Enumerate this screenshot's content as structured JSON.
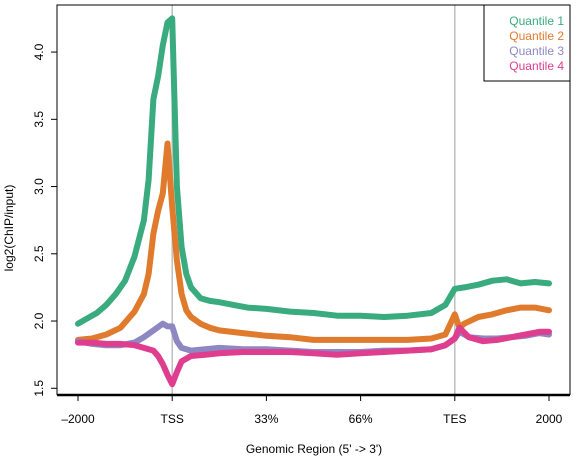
{
  "chart_data": {
    "type": "line",
    "title": "",
    "xlabel": "Genomic Region (5' -> 3')",
    "ylabel": "log2(ChIP/input)",
    "xlim": [
      0,
      100
    ],
    "ylim": [
      1.45,
      4.35
    ],
    "x_ticks": [
      {
        "x": 0,
        "label": "–2000"
      },
      {
        "x": 20,
        "label": "TSS"
      },
      {
        "x": 40,
        "label": "33%"
      },
      {
        "x": 60,
        "label": "66%"
      },
      {
        "x": 80,
        "label": "TES"
      },
      {
        "x": 100,
        "label": "2000"
      }
    ],
    "y_ticks": [
      1.5,
      2.0,
      2.5,
      3.0,
      3.5,
      4.0
    ],
    "vlines": [
      20,
      80
    ],
    "grid": false,
    "legend": {
      "position": "top-right"
    },
    "series": [
      {
        "name": "Quantile 1",
        "color": "#3aaa7f",
        "x": [
          0,
          2,
          4,
          6,
          8,
          10,
          12,
          14,
          15,
          16,
          17,
          18,
          19,
          20,
          21,
          22,
          23,
          24,
          26,
          28,
          30,
          33,
          36,
          40,
          45,
          50,
          55,
          60,
          65,
          70,
          75,
          78,
          80,
          82,
          85,
          88,
          91,
          94,
          97,
          100
        ],
        "y": [
          1.98,
          2.02,
          2.06,
          2.12,
          2.2,
          2.3,
          2.48,
          2.75,
          3.05,
          3.65,
          3.82,
          4.05,
          4.22,
          4.25,
          3.0,
          2.55,
          2.35,
          2.25,
          2.17,
          2.15,
          2.14,
          2.12,
          2.1,
          2.09,
          2.07,
          2.06,
          2.04,
          2.04,
          2.03,
          2.04,
          2.06,
          2.12,
          2.24,
          2.25,
          2.27,
          2.3,
          2.31,
          2.28,
          2.29,
          2.28
        ]
      },
      {
        "name": "Quantile 2",
        "color": "#e07a2c",
        "x": [
          0,
          3,
          6,
          9,
          12,
          14,
          15,
          16,
          17,
          18,
          19,
          20,
          21,
          22,
          23,
          24,
          26,
          28,
          30,
          35,
          40,
          45,
          50,
          55,
          60,
          65,
          70,
          75,
          78,
          80,
          81,
          82,
          85,
          88,
          91,
          94,
          97,
          100
        ],
        "y": [
          1.86,
          1.87,
          1.9,
          1.95,
          2.07,
          2.2,
          2.35,
          2.65,
          2.82,
          2.95,
          3.32,
          2.85,
          2.45,
          2.2,
          2.08,
          2.03,
          1.98,
          1.95,
          1.93,
          1.91,
          1.89,
          1.88,
          1.86,
          1.86,
          1.86,
          1.86,
          1.86,
          1.87,
          1.9,
          2.05,
          1.95,
          1.98,
          2.03,
          2.05,
          2.08,
          2.1,
          2.1,
          2.08
        ]
      },
      {
        "name": "Quantile 3",
        "color": "#8d87c2",
        "x": [
          0,
          3,
          6,
          9,
          12,
          14,
          16,
          18,
          19,
          20,
          21,
          22,
          24,
          27,
          30,
          35,
          40,
          45,
          50,
          55,
          60,
          65,
          70,
          75,
          78,
          80,
          81,
          83,
          86,
          89,
          92,
          95,
          98,
          100
        ],
        "y": [
          1.85,
          1.83,
          1.82,
          1.82,
          1.84,
          1.88,
          1.93,
          1.98,
          1.96,
          1.96,
          1.85,
          1.8,
          1.78,
          1.79,
          1.8,
          1.79,
          1.79,
          1.78,
          1.77,
          1.77,
          1.77,
          1.78,
          1.78,
          1.79,
          1.82,
          1.87,
          1.92,
          1.88,
          1.87,
          1.87,
          1.88,
          1.89,
          1.91,
          1.9
        ]
      },
      {
        "name": "Quantile 4",
        "color": "#df3d8e",
        "x": [
          0,
          3,
          6,
          9,
          12,
          14,
          16,
          17,
          18,
          19,
          20,
          21,
          22,
          24,
          27,
          30,
          35,
          40,
          45,
          50,
          55,
          60,
          65,
          70,
          75,
          78,
          80,
          81,
          83,
          86,
          89,
          92,
          95,
          98,
          100
        ],
        "y": [
          1.84,
          1.84,
          1.83,
          1.83,
          1.82,
          1.8,
          1.78,
          1.74,
          1.68,
          1.6,
          1.53,
          1.62,
          1.7,
          1.74,
          1.75,
          1.76,
          1.77,
          1.77,
          1.77,
          1.76,
          1.75,
          1.76,
          1.77,
          1.78,
          1.79,
          1.82,
          1.87,
          1.95,
          1.88,
          1.85,
          1.86,
          1.88,
          1.9,
          1.92,
          1.92
        ]
      }
    ]
  }
}
